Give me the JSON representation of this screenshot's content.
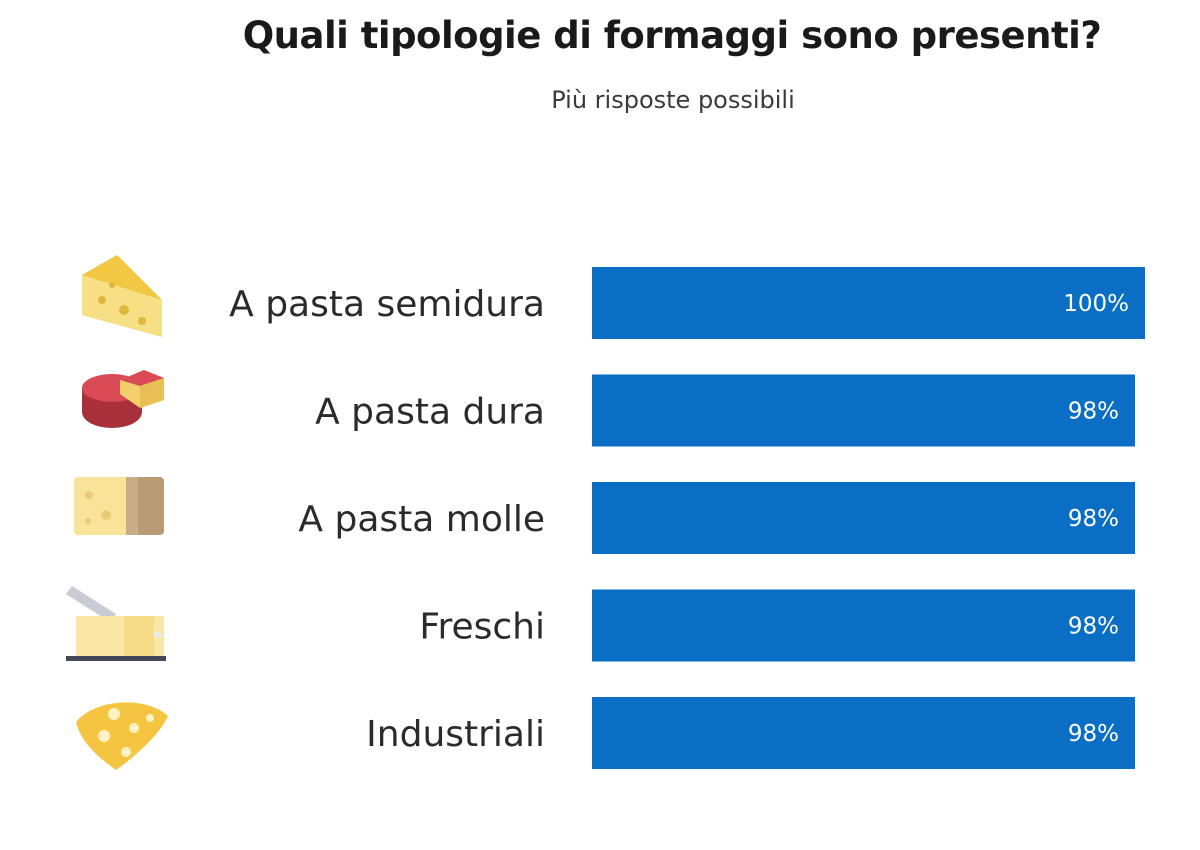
{
  "title": "Quali tipologie di formaggi sono presenti?",
  "subtitle": "Più risposte possibili",
  "colors": {
    "bar": "#0a6ec4",
    "text": "#2b2b2b"
  },
  "chart_data": {
    "type": "bar",
    "orientation": "horizontal",
    "categories": [
      "A pasta semidura",
      "A pasta dura",
      "A pasta molle",
      "Freschi",
      "Industriali"
    ],
    "values": [
      100,
      98,
      98,
      98,
      98
    ],
    "value_labels": [
      "100%",
      "98%",
      "98%",
      "98%",
      "98%"
    ],
    "icons": [
      "cheese-wedge-icon",
      "red-wax-cheese-icon",
      "cheese-block-icon",
      "fresh-cheese-knife-icon",
      "cheese-slice-icon"
    ],
    "xlim": [
      0,
      100
    ],
    "grid": false
  }
}
